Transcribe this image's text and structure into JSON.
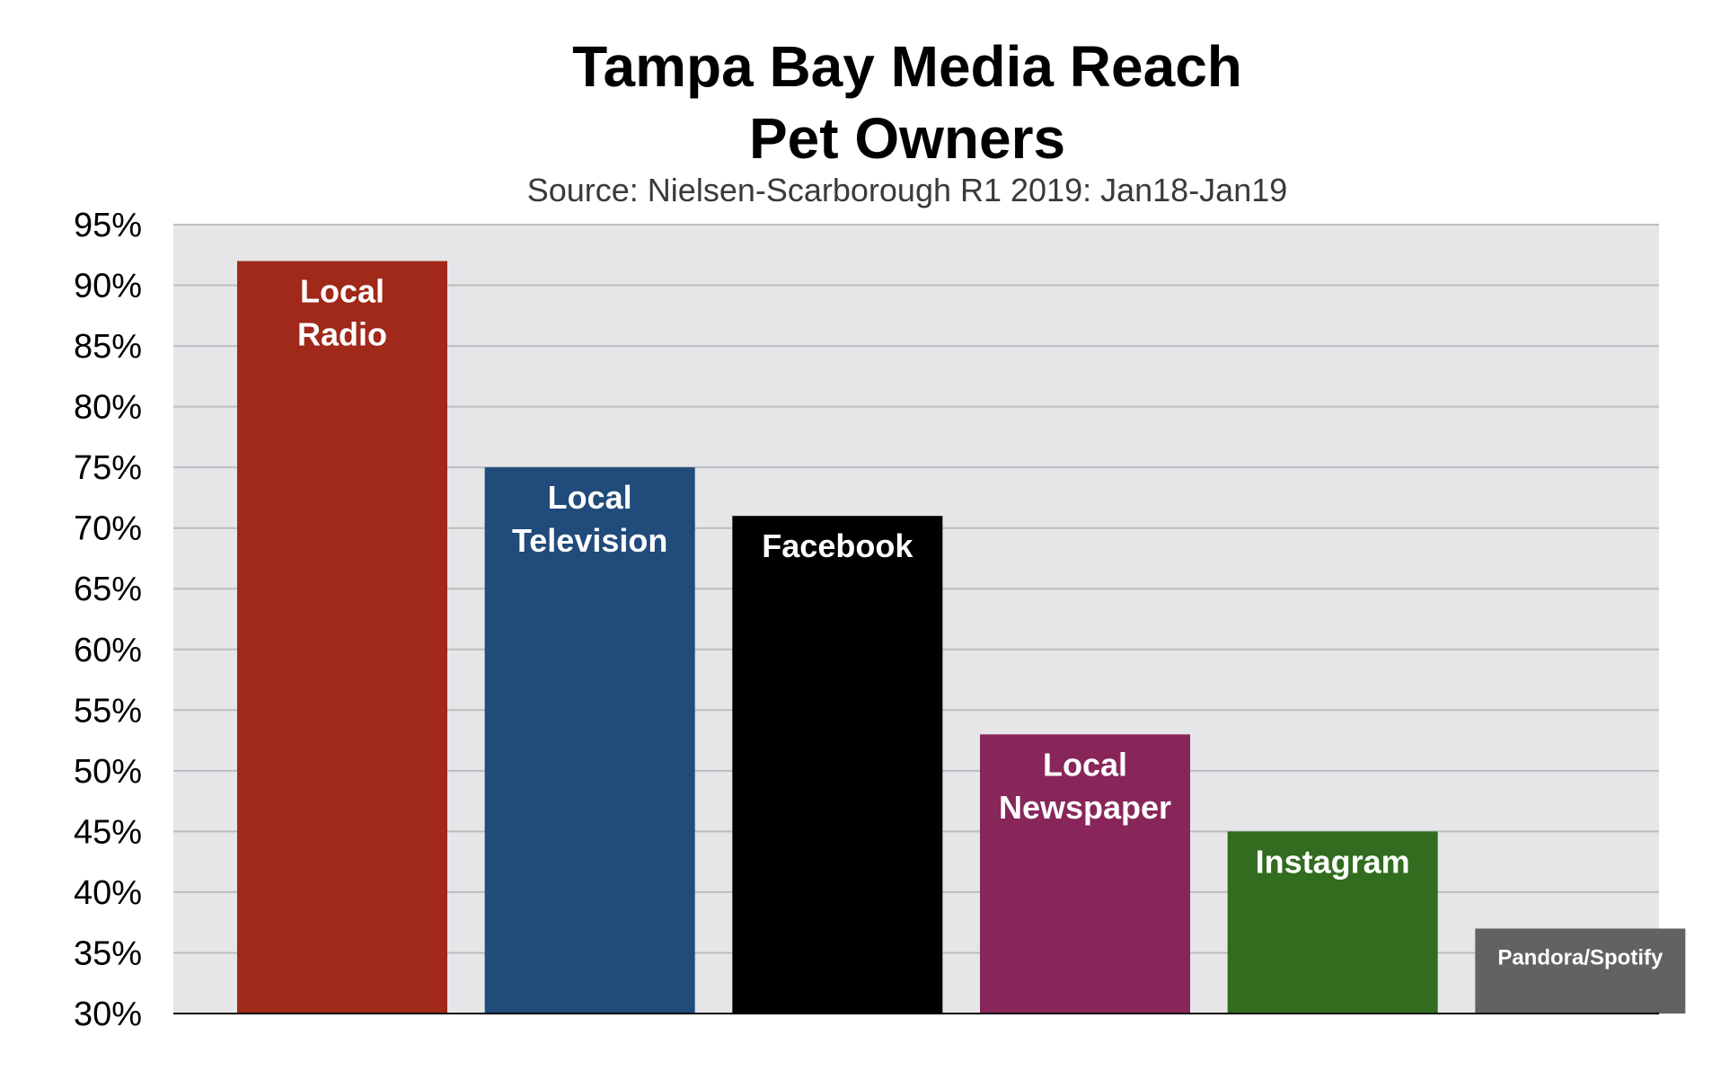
{
  "chart_data": {
    "type": "bar",
    "title": "Tampa Bay Media Reach",
    "title_line2": "Pet Owners",
    "subtitle": "Source: Nielsen-Scarborough R1 2019: Jan18-Jan19",
    "xlabel": "",
    "ylabel": "",
    "ylim": [
      30,
      95
    ],
    "y_ticks": [
      "95%",
      "90%",
      "85%",
      "80%",
      "75%",
      "70%",
      "65%",
      "60%",
      "55%",
      "50%",
      "45%",
      "40%",
      "35%",
      "30%"
    ],
    "grid": true,
    "plot_background": "#e6e6e9",
    "categories": [
      {
        "lines": [
          "Local",
          "Radio"
        ]
      },
      {
        "lines": [
          "Local",
          "Television"
        ]
      },
      {
        "lines": [
          "Facebook"
        ]
      },
      {
        "lines": [
          "Local",
          "Newspaper"
        ]
      },
      {
        "lines": [
          "Instagram"
        ]
      },
      {
        "lines": [
          "Pandora/Spotify"
        ]
      }
    ],
    "values": [
      92,
      75,
      71,
      53,
      45,
      37
    ],
    "colors": [
      "#a0291a",
      "#204b7a",
      "#000000",
      "#88265a",
      "#316c1f",
      "#626262"
    ]
  }
}
